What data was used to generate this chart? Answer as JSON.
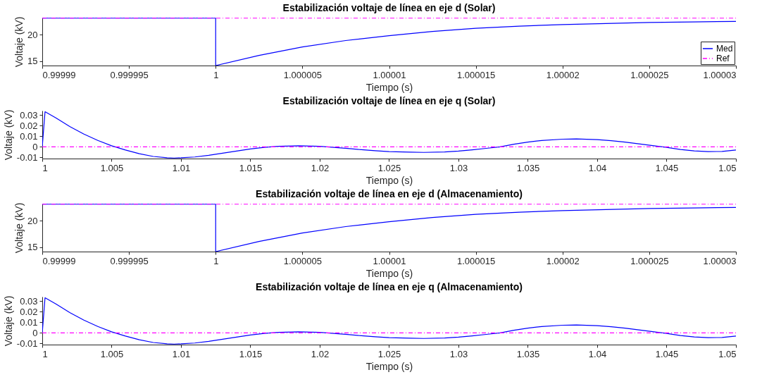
{
  "chart_data": [
    {
      "type": "line",
      "title": "Estabilización voltaje de línea en eje d (Solar)",
      "xlabel": "Tiempo (s)",
      "ylabel": "Voltaje (kV)",
      "xlim": [
        0.99999,
        1.00003
      ],
      "xticks": [
        0.99999,
        0.999995,
        1,
        1.000005,
        1.00001,
        1.000015,
        1.00002,
        1.000025,
        1.00003
      ],
      "ylim": [
        14.2,
        23.2
      ],
      "yticks": [
        15,
        20
      ],
      "legend": "bottom right",
      "grid": false,
      "series": [
        {
          "name": "Med",
          "color": "#0000ff",
          "line_style": "solid",
          "x": [
            0.99999,
            1,
            1,
            1.0000025,
            1.000005,
            1.0000075,
            1.00001,
            1.0000125,
            1.000015,
            1.0000175,
            1.00002,
            1.0000225,
            1.000025,
            1.0000275,
            1.00003
          ],
          "values": [
            23.1,
            23.1,
            14.2,
            16.1,
            17.7,
            18.9,
            19.8,
            20.6,
            21.2,
            21.6,
            21.9,
            22.1,
            22.3,
            22.4,
            22.5
          ]
        },
        {
          "name": "Ref",
          "color": "#ff00ff",
          "line_style": "dashed",
          "x": [
            0.99999,
            1.00003
          ],
          "values": [
            23.1,
            23.1
          ]
        }
      ]
    },
    {
      "type": "line",
      "title": "Estabilización voltaje de línea en eje q (Solar)",
      "xlabel": "Tiempo (s)",
      "ylabel": "Voltaje (kV)",
      "xlim": [
        1,
        1.05
      ],
      "xticks": [
        1,
        1.005,
        1.01,
        1.015,
        1.02,
        1.025,
        1.03,
        1.035,
        1.04,
        1.045,
        1.05
      ],
      "ylim": [
        -0.011,
        0.034
      ],
      "yticks": [
        -0.01,
        0,
        0.01,
        0.02,
        0.03
      ],
      "legend": false,
      "grid": false,
      "series": [
        {
          "color": "#0000ff",
          "line_style": "solid",
          "x": [
            1,
            1.0002,
            1.001,
            1.002,
            1.003,
            1.004,
            1.005,
            1.006,
            1.007,
            1.008,
            1.009,
            1.0095,
            1.01,
            1.011,
            1.012,
            1.013,
            1.014,
            1.015,
            1.016,
            1.017,
            1.0185,
            1.02,
            1.021,
            1.022,
            1.023,
            1.024,
            1.025,
            1.0265,
            1.0275,
            1.029,
            1.03,
            1.031,
            1.032,
            1.033,
            1.034,
            1.035,
            1.036,
            1.0375,
            1.0385,
            1.04,
            1.041,
            1.042,
            1.043,
            1.044,
            1.045,
            1.046,
            1.047,
            1.048,
            1.049,
            1.05
          ],
          "values": [
            0,
            0.033,
            0.027,
            0.019,
            0.012,
            0.006,
            0.001,
            -0.003,
            -0.0065,
            -0.009,
            -0.0102,
            -0.0105,
            -0.0103,
            -0.0095,
            -0.008,
            -0.006,
            -0.004,
            -0.002,
            -0.0005,
            0.0005,
            0.001,
            0.0005,
            -0.0005,
            -0.0015,
            -0.0027,
            -0.0037,
            -0.0045,
            -0.005,
            -0.0052,
            -0.0048,
            -0.004,
            -0.0028,
            -0.0014,
            0,
            0.0025,
            0.0045,
            0.006,
            0.0072,
            0.0074,
            0.0068,
            0.0058,
            0.0045,
            0.0028,
            0.0012,
            -0.0005,
            -0.0025,
            -0.0038,
            -0.0045,
            -0.0043,
            -0.003
          ]
        },
        {
          "color": "#ff00ff",
          "line_style": "dashed",
          "x": [
            1,
            1.05
          ],
          "values": [
            0,
            0
          ]
        }
      ]
    },
    {
      "type": "line",
      "title": "Estabilización voltaje de línea en eje d (Almacenamiento)",
      "xlabel": "Tiempo (s)",
      "ylabel": "Voltaje (kV)",
      "xlim": [
        0.99999,
        1.00003
      ],
      "xticks": [
        0.99999,
        0.999995,
        1,
        1.000005,
        1.00001,
        1.000015,
        1.00002,
        1.000025,
        1.00003
      ],
      "ylim": [
        14.2,
        23.2
      ],
      "yticks": [
        15,
        20
      ],
      "legend": false,
      "grid": false,
      "series": [
        {
          "color": "#0000ff",
          "line_style": "solid",
          "x": [
            0.99999,
            1,
            1,
            1.0000025,
            1.000005,
            1.0000075,
            1.00001,
            1.0000125,
            1.000015,
            1.0000175,
            1.00002,
            1.0000225,
            1.000025,
            1.0000275,
            1.00003
          ],
          "values": [
            23.1,
            23.1,
            14.2,
            16.1,
            17.7,
            18.9,
            19.8,
            20.6,
            21.2,
            21.6,
            21.9,
            22.1,
            22.3,
            22.4,
            22.5
          ]
        },
        {
          "color": "#ff00ff",
          "line_style": "dashed",
          "x": [
            0.99999,
            1.00003
          ],
          "values": [
            23.1,
            23.1
          ]
        }
      ]
    },
    {
      "type": "line",
      "title": "Estabilización voltaje de línea en eje q (Almacenamiento)",
      "xlabel": "Tiempo (s)",
      "ylabel": "Voltaje (kV)",
      "xlim": [
        1,
        1.05
      ],
      "xticks": [
        1,
        1.005,
        1.01,
        1.015,
        1.02,
        1.025,
        1.03,
        1.035,
        1.04,
        1.045,
        1.05
      ],
      "ylim": [
        -0.011,
        0.034
      ],
      "yticks": [
        -0.01,
        0,
        0.01,
        0.02,
        0.03
      ],
      "legend": false,
      "grid": false,
      "series": [
        {
          "color": "#0000ff",
          "line_style": "solid",
          "x": [
            1,
            1.0002,
            1.001,
            1.002,
            1.003,
            1.004,
            1.005,
            1.006,
            1.007,
            1.008,
            1.009,
            1.0095,
            1.01,
            1.011,
            1.012,
            1.013,
            1.014,
            1.015,
            1.016,
            1.017,
            1.0185,
            1.02,
            1.021,
            1.022,
            1.023,
            1.024,
            1.025,
            1.0265,
            1.0275,
            1.029,
            1.03,
            1.031,
            1.032,
            1.033,
            1.034,
            1.035,
            1.036,
            1.0375,
            1.0385,
            1.04,
            1.041,
            1.042,
            1.043,
            1.044,
            1.045,
            1.046,
            1.047,
            1.048,
            1.049,
            1.05
          ],
          "values": [
            0,
            0.033,
            0.027,
            0.019,
            0.012,
            0.006,
            0.001,
            -0.003,
            -0.0065,
            -0.009,
            -0.0102,
            -0.0105,
            -0.0103,
            -0.0095,
            -0.008,
            -0.006,
            -0.004,
            -0.002,
            -0.0005,
            0.0005,
            0.001,
            0.0005,
            -0.0005,
            -0.0015,
            -0.0027,
            -0.0037,
            -0.0045,
            -0.005,
            -0.0052,
            -0.0048,
            -0.004,
            -0.0028,
            -0.0014,
            0,
            0.0025,
            0.0045,
            0.006,
            0.0072,
            0.0074,
            0.0068,
            0.0058,
            0.0045,
            0.0028,
            0.0012,
            -0.0005,
            -0.0025,
            -0.0038,
            -0.0045,
            -0.0043,
            -0.003
          ]
        },
        {
          "color": "#ff00ff",
          "line_style": "dashed",
          "x": [
            1,
            1.05
          ],
          "values": [
            0,
            0
          ]
        }
      ]
    }
  ]
}
